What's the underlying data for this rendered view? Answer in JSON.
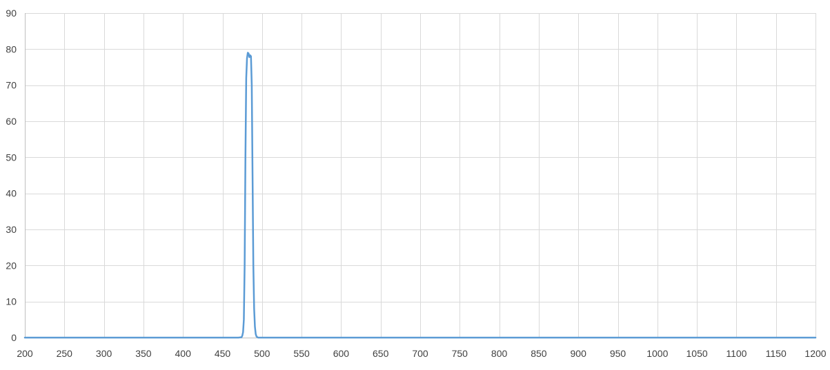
{
  "chart_data": {
    "type": "line",
    "title": "",
    "xlabel": "",
    "ylabel": "",
    "xlim": [
      200,
      1200
    ],
    "ylim": [
      0,
      90
    ],
    "x_ticks": [
      200,
      250,
      300,
      350,
      400,
      450,
      500,
      550,
      600,
      650,
      700,
      750,
      800,
      850,
      900,
      950,
      1000,
      1050,
      1100,
      1150,
      1200
    ],
    "y_ticks": [
      0,
      10,
      20,
      30,
      40,
      50,
      60,
      70,
      80,
      90
    ],
    "grid": true,
    "legend": "none",
    "line_color": "#5b9bd5",
    "grid_color": "#d9d9d9",
    "series": [
      {
        "points": [
          [
            200,
            0
          ],
          [
            470,
            0
          ],
          [
            474,
            0.1
          ],
          [
            475,
            0.5
          ],
          [
            476,
            1.5
          ],
          [
            477,
            5
          ],
          [
            478,
            20
          ],
          [
            479,
            50
          ],
          [
            480,
            72
          ],
          [
            481,
            77.5
          ],
          [
            482,
            79
          ],
          [
            483,
            78.8
          ],
          [
            484,
            77.8
          ],
          [
            485,
            78.3
          ],
          [
            486,
            78
          ],
          [
            487,
            70
          ],
          [
            488,
            45
          ],
          [
            489,
            20
          ],
          [
            490,
            8
          ],
          [
            491,
            3
          ],
          [
            492,
            1
          ],
          [
            493,
            0.3
          ],
          [
            495,
            0
          ],
          [
            1200,
            0
          ]
        ]
      }
    ]
  }
}
